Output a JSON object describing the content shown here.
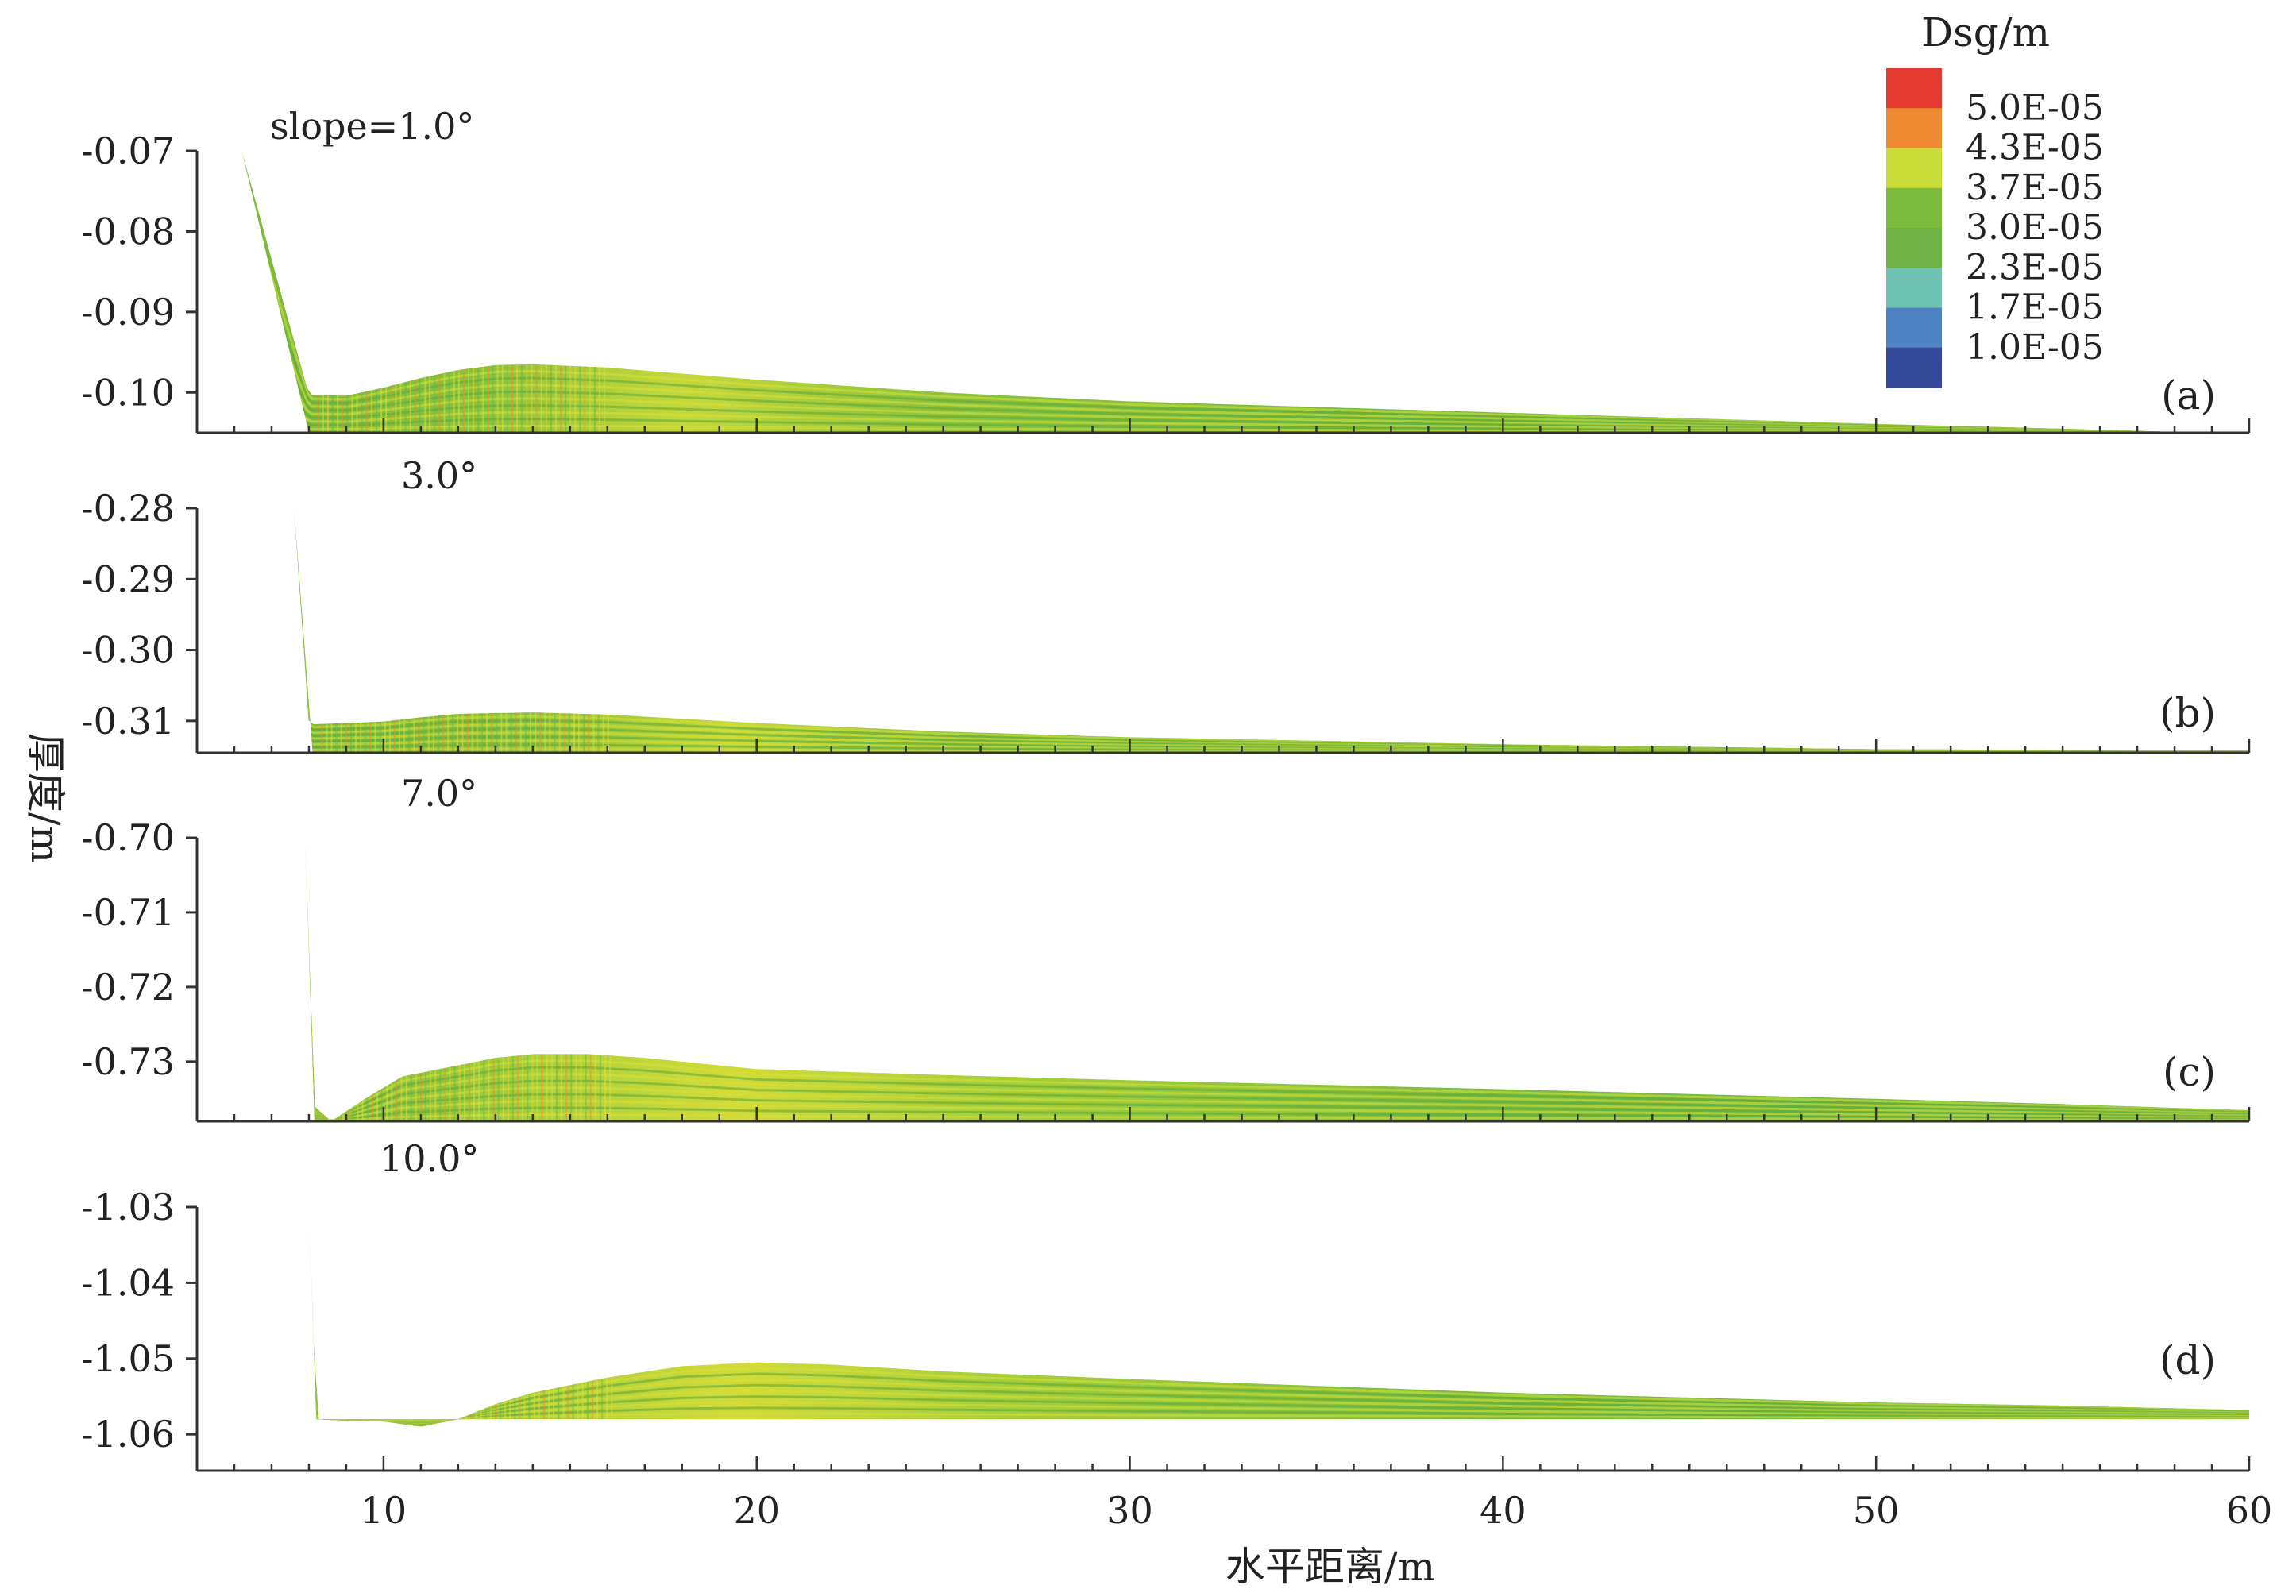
{
  "chart_data": {
    "type": "area",
    "xlabel": "水平距离/m",
    "ylabel": "厚度/m",
    "xlim": [
      5,
      60
    ],
    "x_ticks": [
      10,
      20,
      30,
      40,
      50,
      60
    ],
    "legend": {
      "title": "Dsg/m",
      "placement": "top-right",
      "entries": [
        {
          "label": "5.0E-05",
          "color": "#f3a03c"
        },
        {
          "label": "4.3E-05",
          "color": "#c8dc37"
        },
        {
          "label": "3.7E-05",
          "color": "#82bd3c"
        },
        {
          "label": "3.0E-05",
          "color": "#6fb344"
        },
        {
          "label": "2.3E-05",
          "color": "#67bfb2"
        },
        {
          "label": "1.7E-05",
          "color": "#5a8fcf"
        },
        {
          "label": "1.0E-05",
          "color": "#3d58a9"
        }
      ],
      "band_colors": [
        "#e53a30",
        "#f08a32",
        "#c8dc37",
        "#7cbc3c",
        "#6fb344",
        "#6dc2b2",
        "#4f84c4",
        "#34499a"
      ]
    },
    "panels": [
      {
        "id": "(a)",
        "slope_label": "slope=1.0°",
        "ylim": [
          -0.105,
          -0.07
        ],
        "y_ticks": [
          -0.07,
          -0.08,
          -0.09,
          -0.1
        ],
        "y_tick_labels": [
          "-0.07",
          "-0.08",
          "-0.09",
          "-0.10"
        ],
        "top_surface": {
          "x": [
            6.2,
            8.0,
            9,
            10,
            11,
            12,
            13,
            14,
            16,
            20,
            25,
            30,
            40,
            50,
            55,
            58,
            60
          ],
          "y": [
            -0.07,
            -0.1003,
            -0.1004,
            -0.0994,
            -0.0982,
            -0.0972,
            -0.0966,
            -0.0965,
            -0.0969,
            -0.0984,
            -0.1,
            -0.1011,
            -0.1025,
            -0.1039,
            -0.1045,
            -0.1049,
            -0.1051
          ]
        },
        "base_y": -0.105,
        "toe_x": 8.0,
        "colors": [
          "#79b93c",
          "#8cc23c",
          "#c6d83a",
          "#6fb344"
        ]
      },
      {
        "id": "(b)",
        "slope_label": "3.0°",
        "ylim": [
          -0.3145,
          -0.28
        ],
        "y_ticks": [
          -0.28,
          -0.29,
          -0.3,
          -0.31
        ],
        "y_tick_labels": [
          "-0.28",
          "-0.29",
          "-0.30",
          "-0.31"
        ],
        "top_surface": {
          "x": [
            7.6,
            8.0,
            9,
            10,
            11,
            12,
            14,
            16,
            20,
            25,
            30,
            40,
            50,
            55,
            58,
            60
          ],
          "y": [
            -0.28,
            -0.3105,
            -0.3103,
            -0.3101,
            -0.3095,
            -0.309,
            -0.3088,
            -0.3091,
            -0.3103,
            -0.3115,
            -0.3123,
            -0.3133,
            -0.314,
            -0.3141,
            -0.3142,
            -0.3142
          ]
        },
        "base_y": -0.3145,
        "toe_x": 8.1,
        "colors": [
          "#79b93c",
          "#8cc23c",
          "#c6d83a",
          "#6fb344"
        ]
      },
      {
        "id": "(c)",
        "slope_label": "7.0°",
        "ylim": [
          -0.738,
          -0.7
        ],
        "y_ticks": [
          -0.7,
          -0.71,
          -0.72,
          -0.73
        ],
        "y_tick_labels": [
          "-0.70",
          "-0.71",
          "-0.72",
          "-0.73"
        ],
        "top_surface": {
          "x": [
            7.9,
            8.15,
            8.6,
            9.5,
            10.5,
            12,
            13,
            14,
            15.5,
            17,
            20,
            25,
            30,
            40,
            50,
            55,
            58,
            60
          ],
          "y": [
            -0.7,
            -0.736,
            -0.738,
            -0.735,
            -0.732,
            -0.7305,
            -0.7295,
            -0.729,
            -0.729,
            -0.7295,
            -0.731,
            -0.7318,
            -0.7325,
            -0.7337,
            -0.735,
            -0.7357,
            -0.7362,
            -0.7365
          ]
        },
        "base_y": -0.738,
        "toe_x": 8.15,
        "colors": [
          "#7cbc3c",
          "#a8cf3a",
          "#d3db38",
          "#6fb344"
        ]
      },
      {
        "id": "(d)",
        "slope_label": "10.0°",
        "ylim": [
          -1.0648,
          -1.03
        ],
        "y_ticks": [
          -1.03,
          -1.04,
          -1.05,
          -1.06
        ],
        "y_tick_labels": [
          "-1.03",
          "-1.04",
          "-1.05",
          "-1.06"
        ],
        "top_surface": {
          "x": [
            8.0,
            8.2,
            9.0,
            10,
            11,
            12,
            13,
            14,
            16,
            18,
            20,
            22,
            25,
            30,
            40,
            50,
            55,
            60
          ],
          "y": [
            -1.03,
            -1.058,
            -1.0582,
            -1.0583,
            -1.059,
            -1.058,
            -1.056,
            -1.0545,
            -1.0525,
            -1.051,
            -1.0505,
            -1.0508,
            -1.0517,
            -1.0527,
            -1.0545,
            -1.0558,
            -1.0562,
            -1.0568
          ]
        },
        "base_y": -1.058,
        "toe_x": 8.2,
        "colors": [
          "#7cbc3c",
          "#a8cf3a",
          "#d3db38",
          "#6fb344"
        ]
      }
    ]
  }
}
